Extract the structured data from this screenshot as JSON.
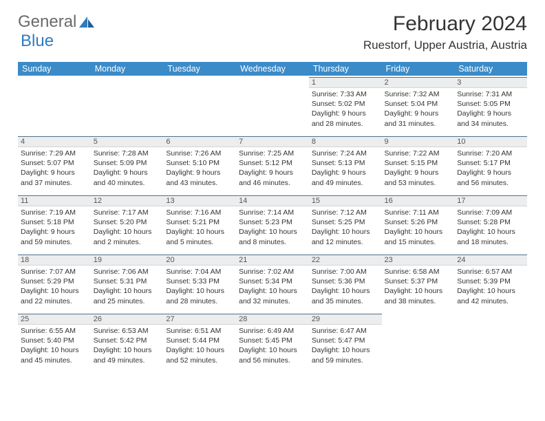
{
  "brand": {
    "part1": "General",
    "part2": "Blue"
  },
  "title": "February 2024",
  "location": "Ruestorf, Upper Austria, Austria",
  "colors": {
    "header_bg": "#3b8bc8",
    "header_text": "#ffffff",
    "daynum_bg": "#ecedef",
    "daynum_border_top": "#4f6f8a",
    "text": "#333333",
    "logo_gray": "#6a6a6a",
    "logo_blue": "#2e7cc0"
  },
  "typography": {
    "title_fontsize": 30,
    "location_fontsize": 17,
    "header_fontsize": 12.5,
    "daynum_fontsize": 11,
    "body_fontsize": 10.5
  },
  "weekdays": [
    "Sunday",
    "Monday",
    "Tuesday",
    "Wednesday",
    "Thursday",
    "Friday",
    "Saturday"
  ],
  "weeks": [
    [
      {
        "empty": true
      },
      {
        "empty": true
      },
      {
        "empty": true
      },
      {
        "empty": true
      },
      {
        "day": "1",
        "lines": [
          "Sunrise: 7:33 AM",
          "Sunset: 5:02 PM",
          "Daylight: 9 hours",
          "and 28 minutes."
        ]
      },
      {
        "day": "2",
        "lines": [
          "Sunrise: 7:32 AM",
          "Sunset: 5:04 PM",
          "Daylight: 9 hours",
          "and 31 minutes."
        ]
      },
      {
        "day": "3",
        "lines": [
          "Sunrise: 7:31 AM",
          "Sunset: 5:05 PM",
          "Daylight: 9 hours",
          "and 34 minutes."
        ]
      }
    ],
    [
      {
        "day": "4",
        "lines": [
          "Sunrise: 7:29 AM",
          "Sunset: 5:07 PM",
          "Daylight: 9 hours",
          "and 37 minutes."
        ]
      },
      {
        "day": "5",
        "lines": [
          "Sunrise: 7:28 AM",
          "Sunset: 5:09 PM",
          "Daylight: 9 hours",
          "and 40 minutes."
        ]
      },
      {
        "day": "6",
        "lines": [
          "Sunrise: 7:26 AM",
          "Sunset: 5:10 PM",
          "Daylight: 9 hours",
          "and 43 minutes."
        ]
      },
      {
        "day": "7",
        "lines": [
          "Sunrise: 7:25 AM",
          "Sunset: 5:12 PM",
          "Daylight: 9 hours",
          "and 46 minutes."
        ]
      },
      {
        "day": "8",
        "lines": [
          "Sunrise: 7:24 AM",
          "Sunset: 5:13 PM",
          "Daylight: 9 hours",
          "and 49 minutes."
        ]
      },
      {
        "day": "9",
        "lines": [
          "Sunrise: 7:22 AM",
          "Sunset: 5:15 PM",
          "Daylight: 9 hours",
          "and 53 minutes."
        ]
      },
      {
        "day": "10",
        "lines": [
          "Sunrise: 7:20 AM",
          "Sunset: 5:17 PM",
          "Daylight: 9 hours",
          "and 56 minutes."
        ]
      }
    ],
    [
      {
        "day": "11",
        "lines": [
          "Sunrise: 7:19 AM",
          "Sunset: 5:18 PM",
          "Daylight: 9 hours",
          "and 59 minutes."
        ]
      },
      {
        "day": "12",
        "lines": [
          "Sunrise: 7:17 AM",
          "Sunset: 5:20 PM",
          "Daylight: 10 hours",
          "and 2 minutes."
        ]
      },
      {
        "day": "13",
        "lines": [
          "Sunrise: 7:16 AM",
          "Sunset: 5:21 PM",
          "Daylight: 10 hours",
          "and 5 minutes."
        ]
      },
      {
        "day": "14",
        "lines": [
          "Sunrise: 7:14 AM",
          "Sunset: 5:23 PM",
          "Daylight: 10 hours",
          "and 8 minutes."
        ]
      },
      {
        "day": "15",
        "lines": [
          "Sunrise: 7:12 AM",
          "Sunset: 5:25 PM",
          "Daylight: 10 hours",
          "and 12 minutes."
        ]
      },
      {
        "day": "16",
        "lines": [
          "Sunrise: 7:11 AM",
          "Sunset: 5:26 PM",
          "Daylight: 10 hours",
          "and 15 minutes."
        ]
      },
      {
        "day": "17",
        "lines": [
          "Sunrise: 7:09 AM",
          "Sunset: 5:28 PM",
          "Daylight: 10 hours",
          "and 18 minutes."
        ]
      }
    ],
    [
      {
        "day": "18",
        "lines": [
          "Sunrise: 7:07 AM",
          "Sunset: 5:29 PM",
          "Daylight: 10 hours",
          "and 22 minutes."
        ]
      },
      {
        "day": "19",
        "lines": [
          "Sunrise: 7:06 AM",
          "Sunset: 5:31 PM",
          "Daylight: 10 hours",
          "and 25 minutes."
        ]
      },
      {
        "day": "20",
        "lines": [
          "Sunrise: 7:04 AM",
          "Sunset: 5:33 PM",
          "Daylight: 10 hours",
          "and 28 minutes."
        ]
      },
      {
        "day": "21",
        "lines": [
          "Sunrise: 7:02 AM",
          "Sunset: 5:34 PM",
          "Daylight: 10 hours",
          "and 32 minutes."
        ]
      },
      {
        "day": "22",
        "lines": [
          "Sunrise: 7:00 AM",
          "Sunset: 5:36 PM",
          "Daylight: 10 hours",
          "and 35 minutes."
        ]
      },
      {
        "day": "23",
        "lines": [
          "Sunrise: 6:58 AM",
          "Sunset: 5:37 PM",
          "Daylight: 10 hours",
          "and 38 minutes."
        ]
      },
      {
        "day": "24",
        "lines": [
          "Sunrise: 6:57 AM",
          "Sunset: 5:39 PM",
          "Daylight: 10 hours",
          "and 42 minutes."
        ]
      }
    ],
    [
      {
        "day": "25",
        "lines": [
          "Sunrise: 6:55 AM",
          "Sunset: 5:40 PM",
          "Daylight: 10 hours",
          "and 45 minutes."
        ]
      },
      {
        "day": "26",
        "lines": [
          "Sunrise: 6:53 AM",
          "Sunset: 5:42 PM",
          "Daylight: 10 hours",
          "and 49 minutes."
        ]
      },
      {
        "day": "27",
        "lines": [
          "Sunrise: 6:51 AM",
          "Sunset: 5:44 PM",
          "Daylight: 10 hours",
          "and 52 minutes."
        ]
      },
      {
        "day": "28",
        "lines": [
          "Sunrise: 6:49 AM",
          "Sunset: 5:45 PM",
          "Daylight: 10 hours",
          "and 56 minutes."
        ]
      },
      {
        "day": "29",
        "lines": [
          "Sunrise: 6:47 AM",
          "Sunset: 5:47 PM",
          "Daylight: 10 hours",
          "and 59 minutes."
        ]
      },
      {
        "empty": true
      },
      {
        "empty": true
      }
    ]
  ]
}
